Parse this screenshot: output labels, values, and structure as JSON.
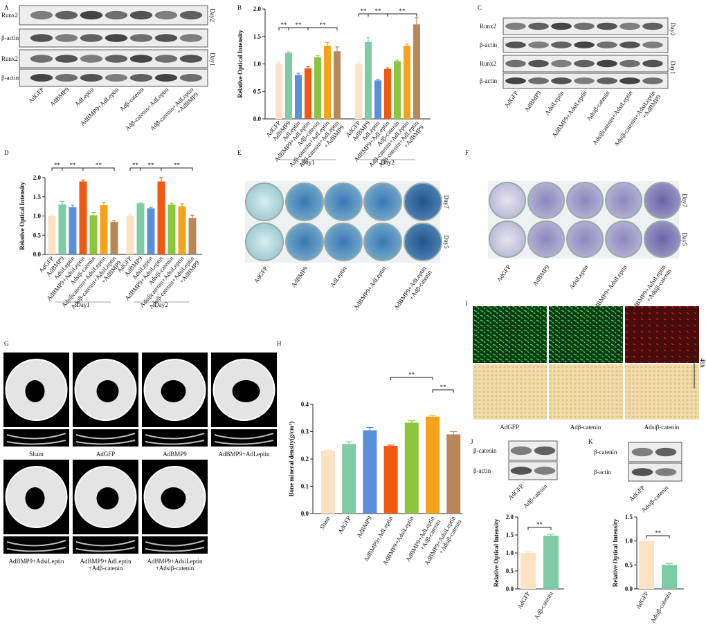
{
  "figure": {
    "panel_letters": [
      "A",
      "B",
      "C",
      "D",
      "E",
      "F",
      "G",
      "H",
      "I",
      "J",
      "K"
    ],
    "blot_A": {
      "rows": [
        "Runx2",
        "β-actin",
        "Runx2",
        "β-actin"
      ],
      "days": [
        "Day2",
        "Day1"
      ],
      "lanes": [
        "AdGFP",
        "AdBMP9",
        "AdLeptin",
        "AdBMP9+AdLeptin",
        "Adβ-catenin",
        "Adβ-catenin+AdLeptin",
        "Adβ-catenin+AdLeptin\n+AdBMP9"
      ]
    },
    "blot_C": {
      "rows": [
        "Runx2",
        "β-actin",
        "Runx2",
        "β-actin"
      ],
      "days": [
        "Day2",
        "Day1"
      ],
      "lanes": [
        "AdGFP",
        "AdBMP9",
        "AdsiLeptin",
        "AdBMP9+AdsiLeptin",
        "Adsiβ-catenin",
        "Adsiβcatenin+AdsiLeptin",
        "Adsiβ-catenin+AdsiLeptin\n+AdBMP9"
      ]
    },
    "wells_E": {
      "days": [
        "Day7",
        "Day5"
      ],
      "lanes": [
        "AdGFP",
        "AdBMP9",
        "AdLeptin",
        "AdBMP9+AdLeptin",
        "AdBMP9+AdLeptin\n+Adβ-catenin"
      ]
    },
    "wells_F": {
      "days": [
        "Day7",
        "Day5"
      ],
      "lanes": [
        "AdGFP",
        "AdBMP9",
        "AdsiLeptin",
        "AdBMP9+AdsiLeptin",
        "AdBMP9+AdsiLeptin\n+Adsiβ-catenin"
      ]
    },
    "ct_G": {
      "labels": [
        "Sham",
        "AdGFP",
        "AdBMP9",
        "AdBMP9+AdLeptin",
        "AdBMP9+AdsiLeptin",
        "AdBMP9+AdLeptin\n+Adβ-catenin",
        "AdBMP9+AdsiLeptin\n+Adsiβ-catenin"
      ]
    },
    "fluor_I": {
      "time": "48h",
      "labels": [
        "AdGFP",
        "Adβ-catenin",
        "Adsiβ-catenin"
      ]
    },
    "blot_J": {
      "rows": [
        "β-catenin",
        "β-actin"
      ],
      "lanes": [
        "AdGFP",
        "Adβ-catenin"
      ]
    },
    "blot_K": {
      "rows": [
        "β-catenin",
        "β-actin"
      ],
      "lanes": [
        "AdGFP",
        "Adsiβ-catenin"
      ]
    }
  },
  "chart_data": [
    {
      "type": "bar",
      "y_label": "Relative Optical Intensity",
      "ylim": [
        0,
        2
      ],
      "yticks": [
        {
          "value": 0,
          "label": "0.0"
        },
        0.5,
        {
          "value": 1,
          "label": "1.0"
        },
        1.5,
        {
          "value": 2,
          "label": "2.0"
        }
      ],
      "categories": [
        "AdGFP",
        "AdBMP9",
        "AdLeptin",
        "AdBMP9+AdLeptin",
        "Adβ-catenin",
        "Adβ-catenin+AdLeptin",
        "Adβ-catenin+AdLeptin\n+AdBMP9"
      ],
      "colors": [
        "#fde3c3",
        "#7ecba5",
        "#5b8fd9",
        "#ef5a10",
        "#8cc63f",
        "#f5a31a",
        "#b8875a"
      ],
      "series": [
        {
          "name": "Day1",
          "values": [
            1.0,
            1.2,
            0.8,
            0.92,
            1.12,
            1.33,
            1.23
          ],
          "errors": [
            0.03,
            0.02,
            0.03,
            0.03,
            0.03,
            0.06,
            0.08
          ]
        },
        {
          "name": "Day2",
          "values": [
            1.0,
            1.4,
            0.7,
            0.91,
            1.05,
            1.33,
            1.72
          ],
          "errors": [
            0.03,
            0.08,
            0.02,
            0.02,
            0.02,
            0.03,
            0.12
          ]
        }
      ],
      "annotations": [
        "**",
        "**",
        "**",
        "**",
        "**",
        "**"
      ]
    },
    {
      "type": "bar",
      "y_label": "Relative Optical Intensity",
      "ylim": [
        0,
        2
      ],
      "yticks": [
        {
          "value": 0,
          "label": "0.0"
        },
        0.5,
        {
          "value": 1,
          "label": "1.0"
        },
        1.5,
        {
          "value": 2,
          "label": "2.0"
        }
      ],
      "categories": [
        "AdGFP",
        "AdBMP9",
        "AdsiLeptin",
        "AdBMP9+AdsiLeptin",
        "Adsiβ-catenin",
        "Adsiβcatenin+AdsiLeptin",
        "Adsiβ-catenin+AdsiLeptin\n+AdBMP9"
      ],
      "colors": [
        "#fde3c3",
        "#7ecba5",
        "#5b8fd9",
        "#ef5a10",
        "#8cc63f",
        "#f5a31a",
        "#b8875a"
      ],
      "series": [
        {
          "name": "Day1",
          "values": [
            1.0,
            1.3,
            1.23,
            1.9,
            1.02,
            1.28,
            0.85
          ],
          "errors": [
            0.03,
            0.08,
            0.05,
            0.04,
            0.07,
            0.08,
            0.03
          ]
        },
        {
          "name": "Day2",
          "values": [
            1.0,
            1.33,
            1.2,
            1.9,
            1.3,
            1.25,
            0.95
          ],
          "errors": [
            0.03,
            0.02,
            0.03,
            0.1,
            0.03,
            0.07,
            0.07
          ]
        }
      ],
      "annotations": [
        "**",
        "**",
        "**",
        "**",
        "**",
        "**"
      ]
    },
    {
      "type": "bar",
      "y_label": "Bone mineral density(g/cm³)",
      "ylim": [
        0,
        0.4
      ],
      "yticks": [
        {
          "value": 0,
          "label": "0.0"
        },
        0.1,
        0.2,
        0.3,
        0.4
      ],
      "categories": [
        "Sham",
        "AdGFP",
        "AdBMP9",
        "AdBMP9+AdLeptin",
        "AdBMP9+AdsiLeptin",
        "AdBMP9+AdLeptin\n+Adβ-catenin",
        "AdBMP9+AdsiLeptin\n+Adsiβ-catenin"
      ],
      "colors": [
        "#fde3c3",
        "#7ecba5",
        "#5b8fd9",
        "#ef5a10",
        "#8cc63f",
        "#f5a31a",
        "#b8875a"
      ],
      "values": [
        0.23,
        0.255,
        0.305,
        0.248,
        0.333,
        0.355,
        0.29
      ],
      "errors": [
        0.003,
        0.008,
        0.01,
        0.003,
        0.007,
        0.005,
        0.01
      ],
      "annotations": [
        "**",
        "**"
      ]
    },
    {
      "type": "bar",
      "y_label": "Relative Optical Intensity",
      "ylim": [
        0,
        2
      ],
      "yticks": [
        {
          "value": 0,
          "label": "0.0"
        },
        0.5,
        {
          "value": 1,
          "label": "1.0"
        },
        1.5,
        {
          "value": 2,
          "label": "2.0"
        }
      ],
      "categories": [
        "AdGFP",
        "Adβ-catenin"
      ],
      "colors": [
        "#fde3c3",
        "#7ecba5"
      ],
      "values": [
        1.0,
        1.48
      ],
      "errors": [
        0.03,
        0.04
      ],
      "annotations": [
        "**"
      ]
    },
    {
      "type": "bar",
      "y_label": "Relative Optical Intensity",
      "ylim": [
        0,
        1.5
      ],
      "yticks": [
        {
          "value": 0,
          "label": "0.0"
        },
        0.5,
        {
          "value": 1,
          "label": "1.0"
        },
        1.5
      ],
      "categories": [
        "AdGFP",
        "Adsiβ-catenin"
      ],
      "colors": [
        "#fde3c3",
        "#7ecba5"
      ],
      "values": [
        1.0,
        0.5
      ],
      "errors": [
        0.04,
        0.03
      ],
      "annotations": [
        "**"
      ]
    }
  ]
}
